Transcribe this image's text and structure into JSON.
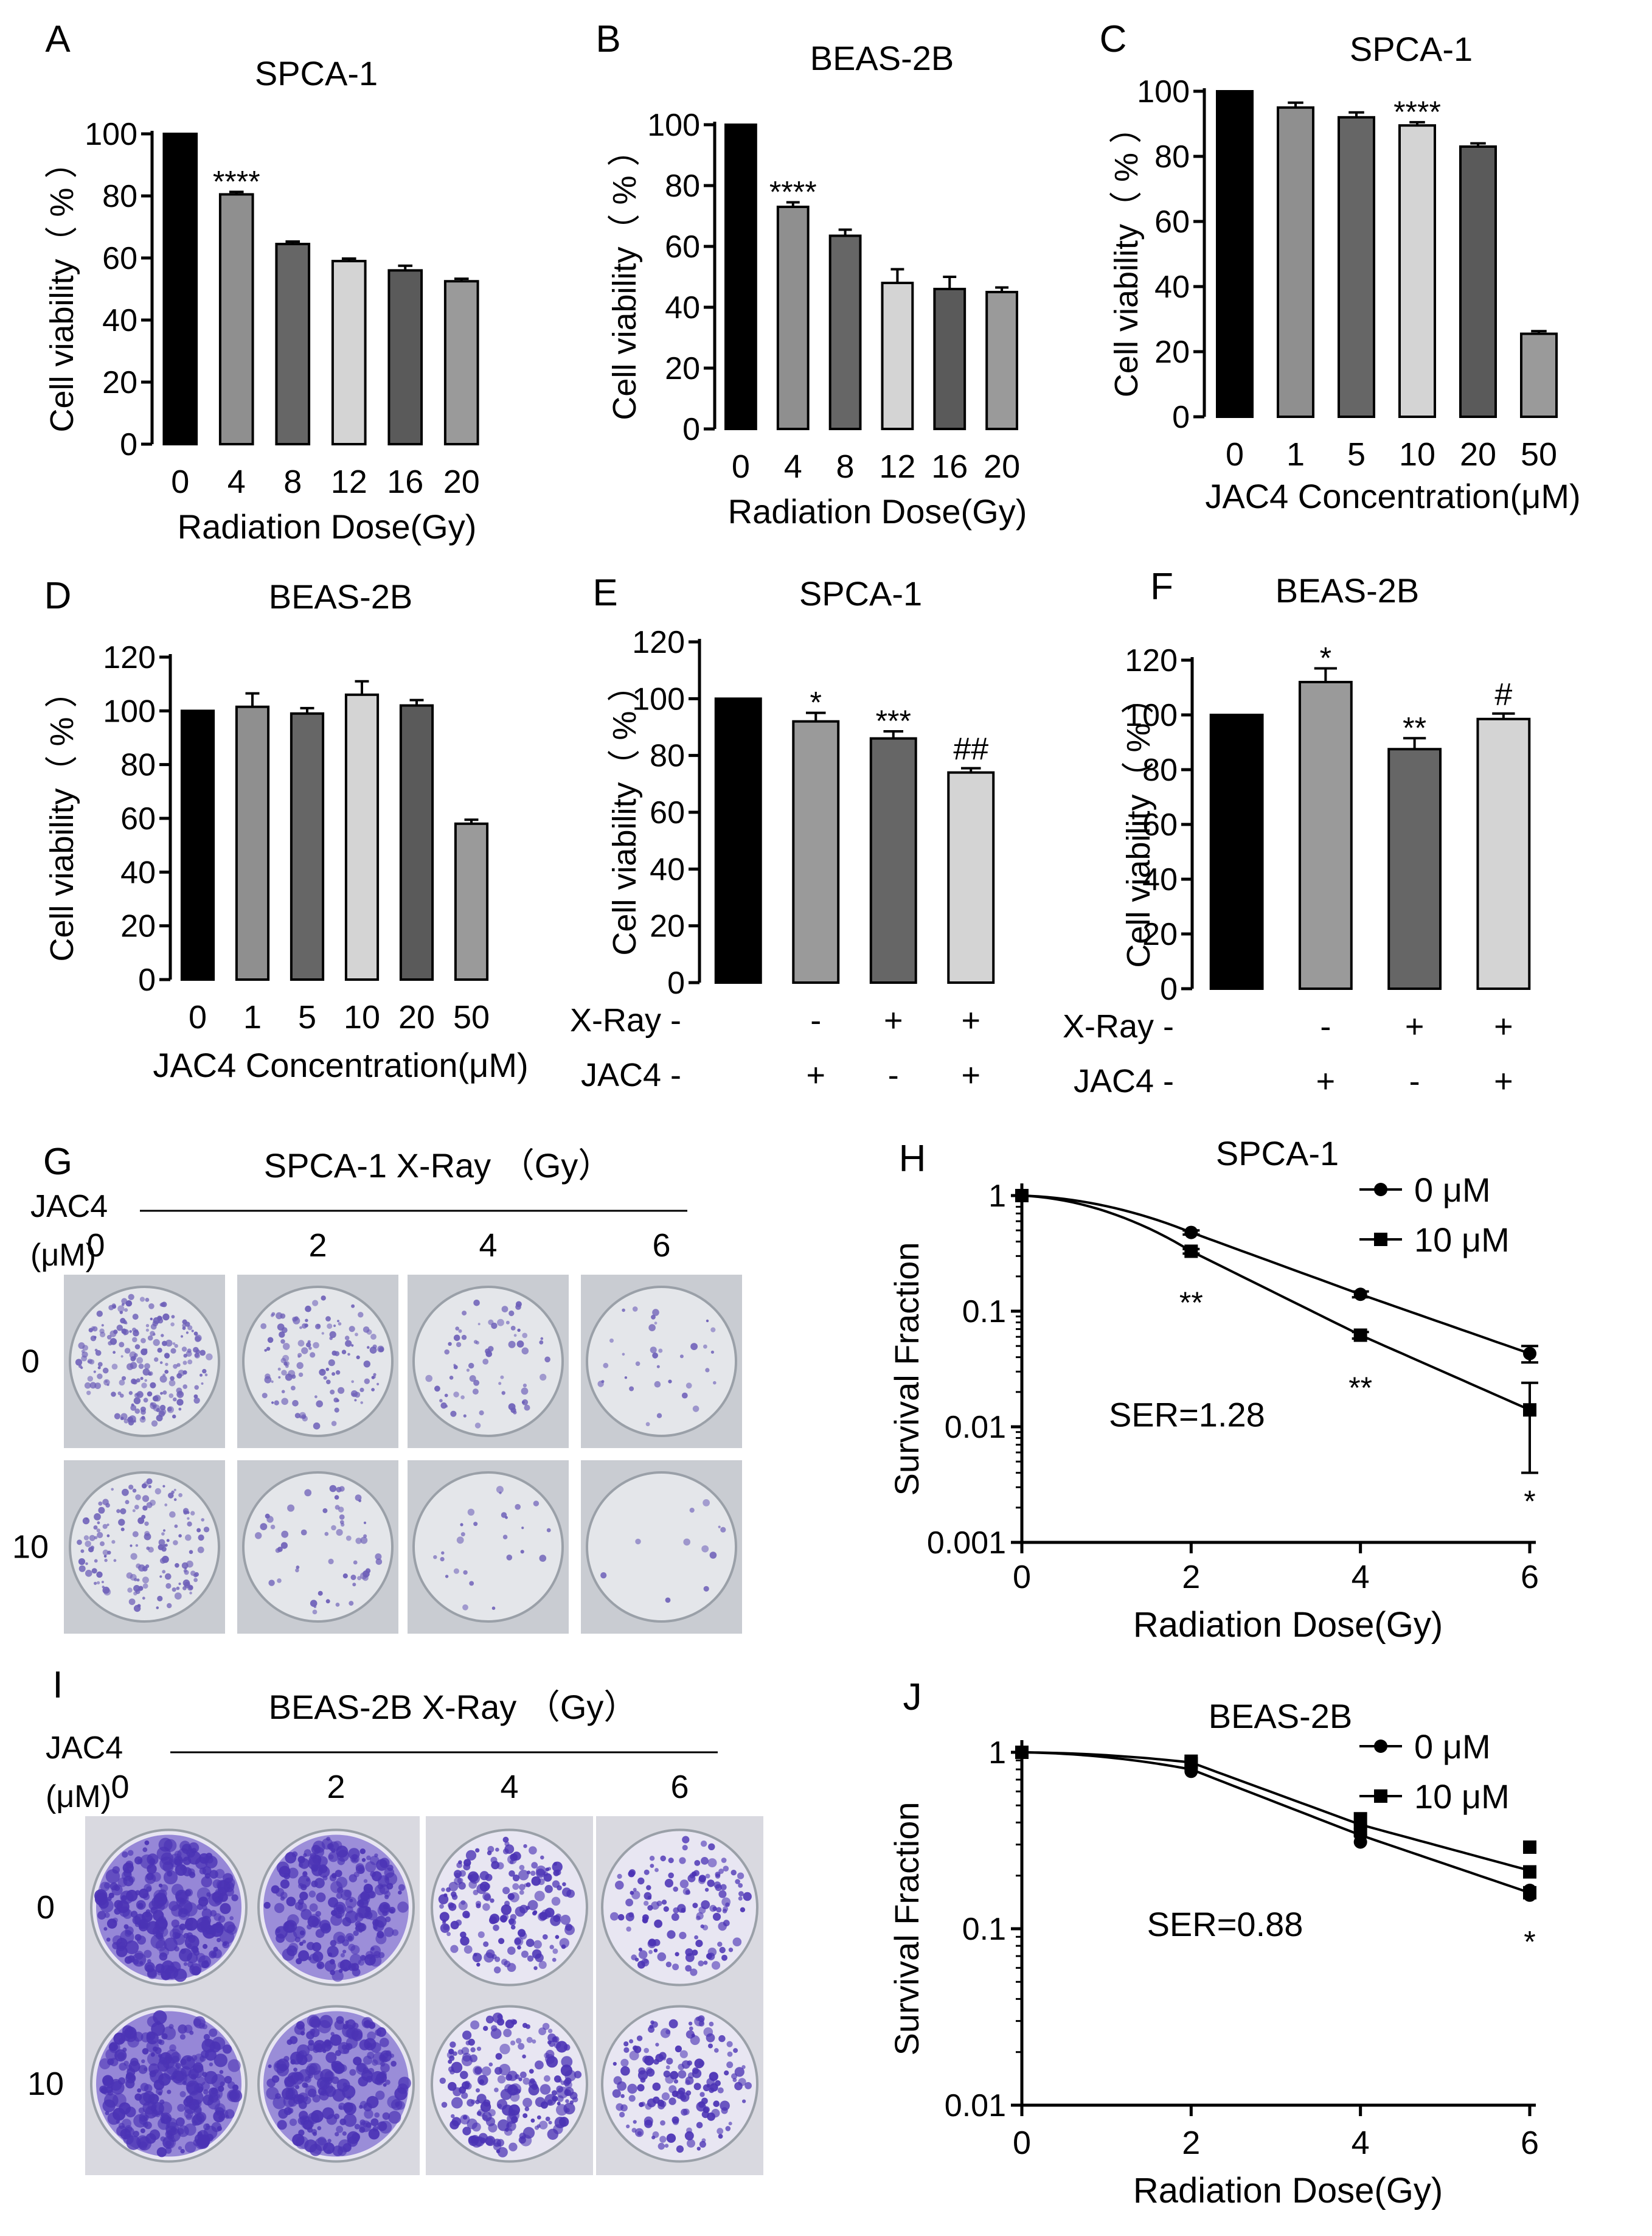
{
  "figure": {
    "panels": [
      {
        "letter": "A",
        "title": "SPCA-1",
        "ylabel": "Cell viability（ % ）",
        "xlabel": "Radiation Dose(Gy)"
      },
      {
        "letter": "B",
        "title": "BEAS-2B",
        "ylabel": "Cell viability（ % ）",
        "xlabel": "Radiation Dose(Gy)"
      },
      {
        "letter": "C",
        "title": "SPCA-1",
        "ylabel": "Cell viability（ % ）",
        "xlabel": "JAC4 Concentration(μM)"
      },
      {
        "letter": "D",
        "title": "BEAS-2B",
        "ylabel": "Cell viability（ % ）",
        "xlabel": "JAC4 Concentration(μM)"
      },
      {
        "letter": "E",
        "title": "SPCA-1",
        "ylabel": "Cell viability（ % ）",
        "xlabel": ""
      },
      {
        "letter": "F",
        "title": "BEAS-2B",
        "ylabel": "Cell viability（ % ）",
        "xlabel": ""
      },
      {
        "letter": "G",
        "title": "SPCA-1   X-Ray （Gy）"
      },
      {
        "letter": "H",
        "title": "SPCA-1",
        "ylabel": "Survival Fraction",
        "xlabel": "Radiation Dose(Gy)"
      },
      {
        "letter": "I",
        "title": "BEAS-2B   X-Ray （Gy）"
      },
      {
        "letter": "J",
        "title": "BEAS-2B",
        "ylabel": "Survival Fraction",
        "xlabel": "Radiation Dose(Gy)"
      }
    ],
    "colonies": {
      "jac4_label_1": "JAC4",
      "jac4_label_2": "(μM)",
      "doses": [
        "0",
        "2",
        "4",
        "6"
      ],
      "rows": [
        "0",
        "10"
      ]
    }
  },
  "chart_data": [
    {
      "panel": "A",
      "type": "bar",
      "title": "SPCA-1",
      "ylabel": "Cell viability（ % ）",
      "xlabel": "Radiation Dose(Gy)",
      "categories": [
        "0",
        "4",
        "8",
        "12",
        "16",
        "20"
      ],
      "values": [
        100,
        80.5,
        64.5,
        59,
        56,
        52.5
      ],
      "errors": [
        0,
        0.8,
        0.8,
        0.8,
        1.5,
        0.8
      ],
      "annotations": [
        "",
        "****",
        "",
        "",
        "",
        ""
      ],
      "colors": [
        "#000000",
        "#8f8f8f",
        "#666666",
        "#d4d4d4",
        "#5a5a5a",
        "#9a9a9a"
      ],
      "ylim": [
        0,
        100
      ],
      "yticks": [
        0,
        20,
        40,
        60,
        80,
        100
      ]
    },
    {
      "panel": "B",
      "type": "bar",
      "title": "BEAS-2B",
      "ylabel": "Cell viability（ % ）",
      "xlabel": "Radiation Dose(Gy)",
      "categories": [
        "0",
        "4",
        "8",
        "12",
        "16",
        "20"
      ],
      "values": [
        100,
        73,
        63.5,
        48,
        46,
        45
      ],
      "errors": [
        0,
        1.5,
        2,
        4.5,
        4,
        1.5
      ],
      "annotations": [
        "",
        "****",
        "",
        "",
        "",
        ""
      ],
      "colors": [
        "#000000",
        "#8f8f8f",
        "#666666",
        "#d4d4d4",
        "#5a5a5a",
        "#9a9a9a"
      ],
      "ylim": [
        0,
        100
      ],
      "yticks": [
        0,
        20,
        40,
        60,
        80,
        100
      ]
    },
    {
      "panel": "C",
      "type": "bar",
      "title": "SPCA-1",
      "ylabel": "Cell viability（ % ）",
      "xlabel": "JAC4 Concentration(μM)",
      "categories": [
        "0",
        "1",
        "5",
        "10",
        "20",
        "50"
      ],
      "values": [
        100,
        95,
        92,
        89.5,
        83,
        25.5
      ],
      "errors": [
        0,
        1.5,
        1.5,
        1,
        1,
        0.8
      ],
      "annotations": [
        "",
        "",
        "",
        "****",
        "",
        ""
      ],
      "colors": [
        "#000000",
        "#8f8f8f",
        "#666666",
        "#d4d4d4",
        "#5a5a5a",
        "#9a9a9a"
      ],
      "ylim": [
        0,
        100
      ],
      "yticks": [
        0,
        20,
        40,
        60,
        80,
        100
      ]
    },
    {
      "panel": "D",
      "type": "bar",
      "title": "BEAS-2B",
      "ylabel": "Cell viability（ % ）",
      "xlabel": "JAC4 Concentration(μM)",
      "categories": [
        "0",
        "1",
        "5",
        "10",
        "20",
        "50"
      ],
      "values": [
        100,
        101.5,
        99,
        106,
        102,
        58
      ],
      "errors": [
        0,
        5,
        2,
        5,
        2,
        1.5
      ],
      "annotations": [
        "",
        "",
        "",
        "",
        "",
        ""
      ],
      "colors": [
        "#000000",
        "#8f8f8f",
        "#666666",
        "#d4d4d4",
        "#5a5a5a",
        "#9a9a9a"
      ],
      "ylim": [
        0,
        120
      ],
      "yticks": [
        0,
        20,
        40,
        60,
        80,
        100,
        120
      ]
    },
    {
      "panel": "E",
      "type": "bar",
      "title": "SPCA-1",
      "ylabel": "Cell viability（ % ）",
      "row_labels": [
        "X-Ray",
        "JAC4"
      ],
      "categories_xray": [
        "-",
        "-",
        "+",
        "+"
      ],
      "categories_jac4": [
        "-",
        "+",
        "-",
        "+"
      ],
      "values": [
        100,
        92,
        86,
        74
      ],
      "errors": [
        0,
        3,
        2.5,
        1.5
      ],
      "annotations": [
        "",
        "*",
        "***",
        "##"
      ],
      "colors": [
        "#000000",
        "#9a9a9a",
        "#666666",
        "#d4d4d4"
      ],
      "ylim": [
        0,
        120
      ],
      "yticks": [
        0,
        20,
        40,
        60,
        80,
        100,
        120
      ]
    },
    {
      "panel": "F",
      "type": "bar",
      "title": "BEAS-2B",
      "ylabel": "Cell viability（ % ）",
      "row_labels": [
        "X-Ray",
        "JAC4"
      ],
      "categories_xray": [
        "-",
        "-",
        "+",
        "+"
      ],
      "categories_jac4": [
        "-",
        "+",
        "-",
        "+"
      ],
      "values": [
        100,
        112,
        87.5,
        98.5
      ],
      "errors": [
        0,
        5,
        4,
        2
      ],
      "annotations": [
        "",
        "*",
        "**",
        "#"
      ],
      "colors": [
        "#000000",
        "#9a9a9a",
        "#666666",
        "#d4d4d4"
      ],
      "ylim": [
        0,
        120
      ],
      "yticks": [
        0,
        20,
        40,
        60,
        80,
        100,
        120
      ]
    },
    {
      "panel": "H",
      "type": "scatter",
      "title": "SPCA-1",
      "ylabel": "Survival Fraction",
      "xlabel": "Radiation Dose(Gy)",
      "yscale": "log",
      "ylim": [
        0.001,
        1
      ],
      "xlim": [
        0,
        6
      ],
      "yticks": [
        0.001,
        0.01,
        0.1,
        1
      ],
      "ytick_labels": [
        "0.001",
        "0.01",
        "0.1",
        "1"
      ],
      "xticks": [
        0,
        2,
        4,
        6
      ],
      "series": [
        {
          "name": "0 μM",
          "marker": "circle",
          "x": [
            0,
            2,
            4,
            6
          ],
          "y": [
            1,
            0.48,
            0.14,
            0.043
          ],
          "err": [
            0,
            0.02,
            0.008,
            0.007
          ]
        },
        {
          "name": "10 μM",
          "marker": "square",
          "x": [
            0,
            2,
            4,
            6
          ],
          "y": [
            1,
            0.33,
            0.062,
            0.014
          ],
          "err": [
            0,
            0.015,
            0.004,
            0.01
          ]
        }
      ],
      "annotations": [
        {
          "x": 2,
          "y": 0.12,
          "text": "**"
        },
        {
          "x": 4,
          "y": 0.022,
          "text": "**"
        },
        {
          "x": 6,
          "y": 0.0023,
          "text": "*"
        },
        {
          "x": 1.95,
          "y": 0.0125,
          "text": "SER=1.28"
        }
      ],
      "legend": "top-right"
    },
    {
      "panel": "J",
      "type": "scatter",
      "title": "BEAS-2B",
      "ylabel": "Survival Fraction",
      "xlabel": "Radiation Dose(Gy)",
      "yscale": "log",
      "ylim": [
        0.01,
        1
      ],
      "xlim": [
        0,
        6
      ],
      "yticks": [
        0.01,
        0.1,
        1
      ],
      "ytick_labels": [
        "0.01",
        "0.1",
        "1"
      ],
      "xticks": [
        0,
        2,
        4,
        6
      ],
      "series": [
        {
          "name": "0 μM",
          "marker": "circle",
          "x": [
            0,
            2,
            2,
            4,
            4,
            4,
            6,
            6
          ],
          "y": [
            1,
            0.78,
            0.82,
            0.31,
            0.34,
            0.37,
            0.155,
            0.165
          ]
        },
        {
          "name": "10 μM",
          "marker": "square",
          "x": [
            0,
            2,
            2,
            4,
            4,
            6,
            6,
            6
          ],
          "y": [
            1,
            0.86,
            0.89,
            0.36,
            0.42,
            0.21,
            0.29,
            0.16
          ]
        }
      ],
      "annotations": [
        {
          "x": 6,
          "y": 0.085,
          "text": "*"
        },
        {
          "x": 2.4,
          "y": 0.105,
          "text": "SER=0.88"
        }
      ],
      "legend": "top-right"
    }
  ]
}
